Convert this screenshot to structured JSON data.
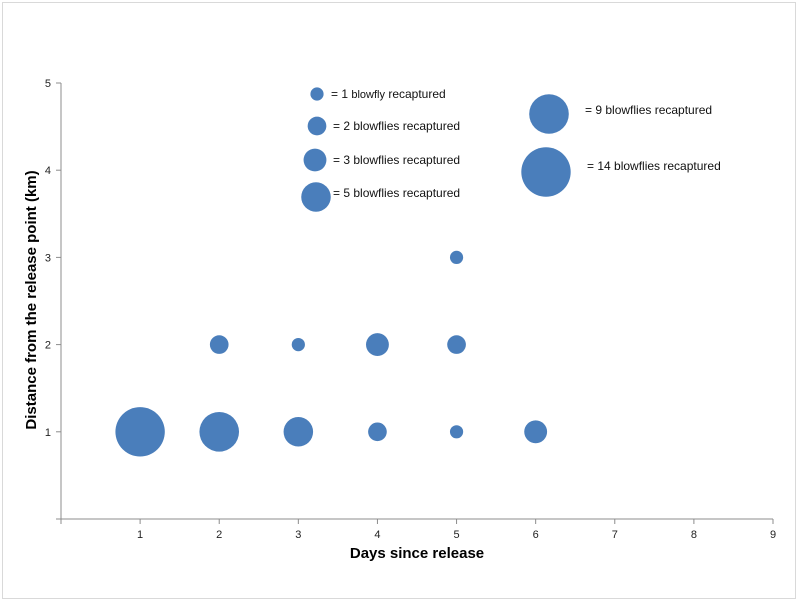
{
  "chart_data": {
    "type": "bubble",
    "xlabel": "Days since release",
    "ylabel": "Distance from the release point (km)",
    "xlim": [
      0,
      9
    ],
    "ylim": [
      0,
      5
    ],
    "x_ticks": [
      1,
      2,
      3,
      4,
      5,
      6,
      7,
      8,
      9
    ],
    "y_ticks": [
      1,
      2,
      3,
      4,
      5
    ],
    "grid": false,
    "color": "#4A7EBB",
    "points": [
      {
        "x": 1,
        "y": 1,
        "count": 14
      },
      {
        "x": 2,
        "y": 1,
        "count": 9
      },
      {
        "x": 3,
        "y": 1,
        "count": 5
      },
      {
        "x": 4,
        "y": 1,
        "count": 2
      },
      {
        "x": 5,
        "y": 1,
        "count": 1
      },
      {
        "x": 6,
        "y": 1,
        "count": 3
      },
      {
        "x": 2,
        "y": 2,
        "count": 2
      },
      {
        "x": 3,
        "y": 2,
        "count": 1
      },
      {
        "x": 4,
        "y": 2,
        "count": 3
      },
      {
        "x": 5,
        "y": 2,
        "count": 2
      },
      {
        "x": 5,
        "y": 3,
        "count": 1
      }
    ],
    "legend": [
      {
        "count": 1,
        "label_pre": "= 1 ",
        "label_small": "blowfly",
        "label_post": " recaptured"
      },
      {
        "count": 2,
        "label": "= 2 blowflies recaptured"
      },
      {
        "count": 3,
        "label": "= 3 blowflies recaptured"
      },
      {
        "count": 5,
        "label": "= 5 blowflies recaptured"
      },
      {
        "count": 9,
        "label": "= 9 blowflies recaptured"
      },
      {
        "count": 14,
        "label": "= 14 blowflies recaptured"
      }
    ]
  }
}
